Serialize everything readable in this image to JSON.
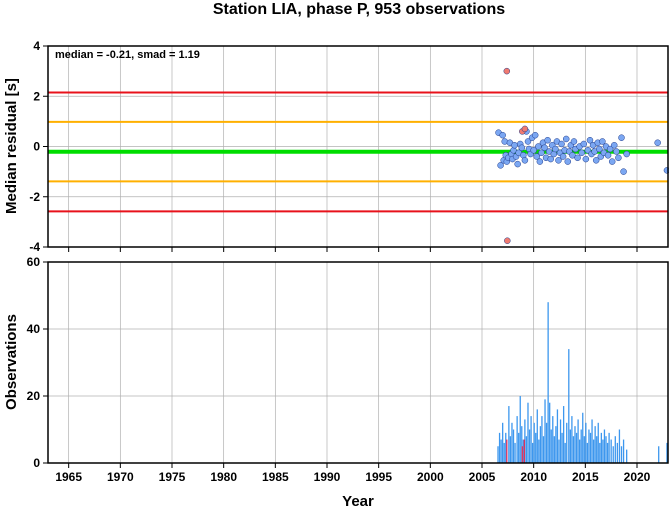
{
  "colors": {
    "background": "#ffffff",
    "grid": "#b0b0b0",
    "red_line": "#e8121b",
    "orange_line": "#ffb000",
    "green_line": "#00dd00",
    "point_normal": "#7ba7f2",
    "point_outlier": "#f07a70",
    "bar_normal": "#3d97ee",
    "bar_outlier": "#e0305c"
  },
  "chart_data": [
    {
      "type": "scatter",
      "title": "Station LIA, phase P, 953 observations",
      "annotation": "median = -0.21, smad = 1.19",
      "xlabel": "",
      "ylabel": "Median residual [s]",
      "xlim": [
        1963,
        2023
      ],
      "ylim": [
        -4,
        4
      ],
      "xticks": [
        "1965",
        "1970",
        "1975",
        "1980",
        "1985",
        "1990",
        "1995",
        "2000",
        "2005",
        "2010",
        "2015",
        "2020"
      ],
      "yticks": [
        "-4",
        "-2",
        "0",
        "2",
        "4"
      ],
      "grid": true,
      "hlines": [
        {
          "y": 2.15,
          "color": "red"
        },
        {
          "y": 0.98,
          "color": "orange"
        },
        {
          "y": -0.21,
          "color": "green"
        },
        {
          "y": -1.39,
          "color": "orange"
        },
        {
          "y": -2.58,
          "color": "red"
        }
      ],
      "series": [
        {
          "points": [
            [
              2006.6,
              0.55
            ],
            [
              2006.8,
              -0.75
            ],
            [
              2007.0,
              0.45
            ],
            [
              2007.1,
              -0.55
            ],
            [
              2007.2,
              0.2
            ],
            [
              2007.3,
              -0.35
            ],
            [
              2007.4,
              -0.6
            ],
            [
              2007.55,
              -0.45
            ],
            [
              2007.7,
              0.15
            ],
            [
              2007.85,
              -0.3
            ],
            [
              2007.95,
              -0.5
            ],
            [
              2008.05,
              -0.15
            ],
            [
              2008.15,
              0.05
            ],
            [
              2008.3,
              -0.4
            ],
            [
              2008.45,
              -0.7
            ],
            [
              2008.55,
              -0.25
            ],
            [
              2008.7,
              0.1
            ],
            [
              2008.85,
              -0.05
            ],
            [
              2009.0,
              -0.35
            ],
            [
              2009.15,
              -0.55
            ],
            [
              2009.3,
              0.6
            ],
            [
              2009.45,
              0.2
            ],
            [
              2009.55,
              -0.1
            ],
            [
              2009.7,
              -0.3
            ],
            [
              2009.85,
              0.35
            ],
            [
              2010.0,
              -0.15
            ],
            [
              2010.15,
              0.45
            ],
            [
              2010.3,
              -0.4
            ],
            [
              2010.45,
              0.0
            ],
            [
              2010.6,
              -0.6
            ],
            [
              2010.75,
              -0.25
            ],
            [
              2010.9,
              0.15
            ],
            [
              2011.05,
              -0.05
            ],
            [
              2011.2,
              -0.45
            ],
            [
              2011.35,
              0.25
            ],
            [
              2011.5,
              -0.2
            ],
            [
              2011.65,
              -0.5
            ],
            [
              2011.8,
              0.05
            ],
            [
              2011.95,
              -0.3
            ],
            [
              2012.1,
              -0.1
            ],
            [
              2012.25,
              0.2
            ],
            [
              2012.4,
              -0.55
            ],
            [
              2012.55,
              -0.25
            ],
            [
              2012.7,
              0.1
            ],
            [
              2012.85,
              -0.4
            ],
            [
              2013.0,
              -0.15
            ],
            [
              2013.15,
              0.3
            ],
            [
              2013.3,
              -0.6
            ],
            [
              2013.45,
              -0.2
            ],
            [
              2013.6,
              0.05
            ],
            [
              2013.75,
              -0.35
            ],
            [
              2013.9,
              0.2
            ],
            [
              2014.05,
              -0.1
            ],
            [
              2014.25,
              -0.45
            ],
            [
              2014.45,
              0.0
            ],
            [
              2014.65,
              -0.25
            ],
            [
              2014.85,
              0.1
            ],
            [
              2015.05,
              -0.5
            ],
            [
              2015.25,
              -0.15
            ],
            [
              2015.45,
              0.25
            ],
            [
              2015.6,
              -0.3
            ],
            [
              2015.75,
              0.05
            ],
            [
              2015.9,
              -0.2
            ],
            [
              2016.05,
              -0.55
            ],
            [
              2016.2,
              0.15
            ],
            [
              2016.35,
              -0.1
            ],
            [
              2016.5,
              -0.4
            ],
            [
              2016.65,
              0.2
            ],
            [
              2016.8,
              -0.25
            ],
            [
              2017.0,
              0.0
            ],
            [
              2017.2,
              -0.35
            ],
            [
              2017.4,
              -0.1
            ],
            [
              2017.6,
              -0.6
            ],
            [
              2017.8,
              0.05
            ],
            [
              2018.0,
              -0.2
            ],
            [
              2018.2,
              -0.45
            ],
            [
              2018.5,
              0.35
            ],
            [
              2018.7,
              -1.0
            ],
            [
              2019.0,
              -0.3
            ],
            [
              2022.0,
              0.15
            ],
            [
              2022.9,
              -0.95
            ]
          ],
          "color": "blue"
        },
        {
          "points": [
            [
              2007.4,
              3.0
            ],
            [
              2007.45,
              -3.75
            ],
            [
              2008.9,
              0.6
            ],
            [
              2009.15,
              0.7
            ]
          ],
          "color": "red"
        }
      ]
    },
    {
      "type": "bar",
      "title": "",
      "xlabel": "Year",
      "ylabel": "Observations",
      "xlim": [
        1963,
        2023
      ],
      "ylim": [
        0,
        60
      ],
      "xticks": [
        "1965",
        "1970",
        "1975",
        "1980",
        "1985",
        "1990",
        "1995",
        "2000",
        "2005",
        "2010",
        "2015",
        "2020"
      ],
      "yticks": [
        "0",
        "20",
        "40",
        "60"
      ],
      "grid": true,
      "bars": [
        {
          "x": 2006.55,
          "value": 5
        },
        {
          "x": 2006.7,
          "value": 9
        },
        {
          "x": 2006.85,
          "value": 7
        },
        {
          "x": 2007.0,
          "value": 12
        },
        {
          "x": 2007.15,
          "value": 6
        },
        {
          "x": 2007.3,
          "value": 9
        },
        {
          "x": 2007.6,
          "value": 17
        },
        {
          "x": 2007.75,
          "value": 8
        },
        {
          "x": 2007.9,
          "value": 12
        },
        {
          "x": 2008.05,
          "value": 10
        },
        {
          "x": 2008.2,
          "value": 6
        },
        {
          "x": 2008.4,
          "value": 14
        },
        {
          "x": 2008.55,
          "value": 9
        },
        {
          "x": 2008.7,
          "value": 20
        },
        {
          "x": 2008.85,
          "value": 11
        },
        {
          "x": 2009.0,
          "value": 7
        },
        {
          "x": 2009.15,
          "value": 13
        },
        {
          "x": 2009.3,
          "value": 8
        },
        {
          "x": 2009.45,
          "value": 18
        },
        {
          "x": 2009.6,
          "value": 10
        },
        {
          "x": 2009.75,
          "value": 14
        },
        {
          "x": 2009.9,
          "value": 6
        },
        {
          "x": 2010.05,
          "value": 12
        },
        {
          "x": 2010.2,
          "value": 9
        },
        {
          "x": 2010.35,
          "value": 16
        },
        {
          "x": 2010.5,
          "value": 7
        },
        {
          "x": 2010.65,
          "value": 11
        },
        {
          "x": 2010.8,
          "value": 14
        },
        {
          "x": 2010.95,
          "value": 8
        },
        {
          "x": 2011.1,
          "value": 19
        },
        {
          "x": 2011.25,
          "value": 12
        },
        {
          "x": 2011.4,
          "value": 48
        },
        {
          "x": 2011.55,
          "value": 18
        },
        {
          "x": 2011.7,
          "value": 10
        },
        {
          "x": 2011.85,
          "value": 14
        },
        {
          "x": 2012.0,
          "value": 8
        },
        {
          "x": 2012.15,
          "value": 11
        },
        {
          "x": 2012.3,
          "value": 16
        },
        {
          "x": 2012.45,
          "value": 7
        },
        {
          "x": 2012.6,
          "value": 13
        },
        {
          "x": 2012.75,
          "value": 9
        },
        {
          "x": 2012.9,
          "value": 17
        },
        {
          "x": 2013.05,
          "value": 6
        },
        {
          "x": 2013.2,
          "value": 12
        },
        {
          "x": 2013.4,
          "value": 34
        },
        {
          "x": 2013.55,
          "value": 10
        },
        {
          "x": 2013.7,
          "value": 14
        },
        {
          "x": 2013.85,
          "value": 8
        },
        {
          "x": 2014.0,
          "value": 11
        },
        {
          "x": 2014.15,
          "value": 9
        },
        {
          "x": 2014.3,
          "value": 13
        },
        {
          "x": 2014.45,
          "value": 7
        },
        {
          "x": 2014.6,
          "value": 10
        },
        {
          "x": 2014.75,
          "value": 15
        },
        {
          "x": 2014.9,
          "value": 8
        },
        {
          "x": 2015.05,
          "value": 12
        },
        {
          "x": 2015.2,
          "value": 6
        },
        {
          "x": 2015.35,
          "value": 10
        },
        {
          "x": 2015.5,
          "value": 9
        },
        {
          "x": 2015.65,
          "value": 13
        },
        {
          "x": 2015.8,
          "value": 7
        },
        {
          "x": 2015.95,
          "value": 11
        },
        {
          "x": 2016.1,
          "value": 8
        },
        {
          "x": 2016.25,
          "value": 12
        },
        {
          "x": 2016.4,
          "value": 6
        },
        {
          "x": 2016.55,
          "value": 9
        },
        {
          "x": 2016.7,
          "value": 7
        },
        {
          "x": 2016.85,
          "value": 10
        },
        {
          "x": 2017.0,
          "value": 8
        },
        {
          "x": 2017.15,
          "value": 6
        },
        {
          "x": 2017.3,
          "value": 9
        },
        {
          "x": 2017.5,
          "value": 7
        },
        {
          "x": 2017.7,
          "value": 5
        },
        {
          "x": 2017.9,
          "value": 8
        },
        {
          "x": 2018.1,
          "value": 6
        },
        {
          "x": 2018.3,
          "value": 10
        },
        {
          "x": 2018.5,
          "value": 5
        },
        {
          "x": 2018.7,
          "value": 7
        },
        {
          "x": 2019.0,
          "value": 4
        },
        {
          "x": 2022.1,
          "value": 5
        },
        {
          "x": 2022.9,
          "value": 6
        }
      ],
      "outlier_bars": [
        {
          "x": 2007.4,
          "value": 7
        },
        {
          "x": 2008.9,
          "value": 5
        },
        {
          "x": 2009.1,
          "value": 7
        }
      ]
    }
  ]
}
